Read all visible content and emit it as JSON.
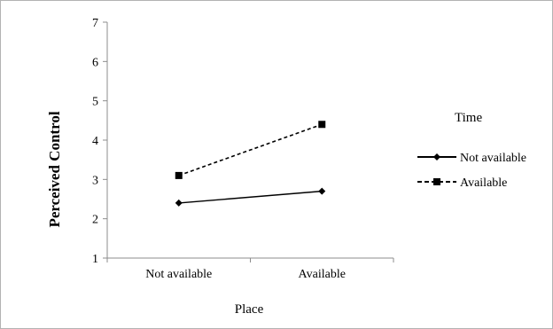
{
  "chart_data": {
    "type": "line",
    "title": "",
    "xlabel": "Place",
    "ylabel": "Perceived Control",
    "categories": [
      "Not available",
      "Available"
    ],
    "ylim": [
      1,
      7
    ],
    "yticks": [
      1,
      2,
      3,
      4,
      5,
      6,
      7
    ],
    "grid": false,
    "legend": {
      "title": "Time",
      "placement": "right"
    },
    "series": [
      {
        "name": "Not available",
        "values": [
          2.4,
          2.7
        ],
        "style": "solid",
        "marker": "diamond",
        "color": "#000000"
      },
      {
        "name": "Available",
        "values": [
          3.1,
          4.4
        ],
        "style": "dashed",
        "marker": "square",
        "color": "#000000"
      }
    ]
  }
}
